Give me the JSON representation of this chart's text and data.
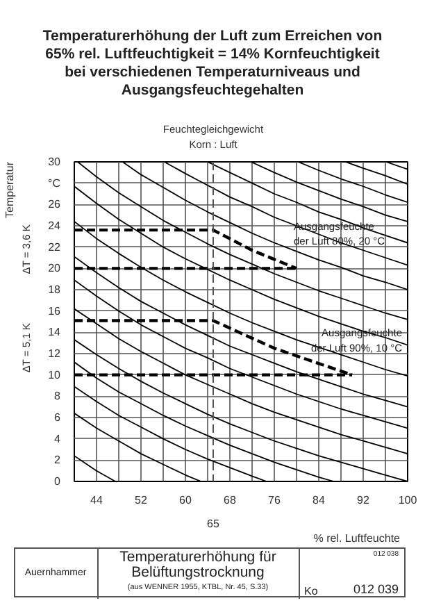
{
  "chart_data": {
    "type": "line",
    "title": "Temperaturerhöhung der Luft zum Erreichen von 65% rel. Luftfeuchtigkeit = 14% Kornfeuchtigkeit bei verschiedenen Temperaturniveaus und Ausgangsfeuchtegehalten",
    "xlabel": "% rel. Luftfeuchte",
    "ylabel": "Temperatur",
    "xlim": [
      40,
      100
    ],
    "ylim": [
      0,
      30
    ],
    "xticks": [
      {
        "value": 40,
        "label": null
      },
      44,
      {
        "value": 48,
        "label": null
      },
      52,
      {
        "value": 56,
        "label": null
      },
      60,
      {
        "value": 64,
        "label": null
      },
      68,
      {
        "value": 72,
        "label": null
      },
      76,
      {
        "value": 80,
        "label": null
      },
      84,
      {
        "value": 88,
        "label": null
      },
      92,
      {
        "value": 96,
        "label": null
      },
      100
    ],
    "yticks": [
      0,
      2,
      4,
      6,
      8,
      10,
      12,
      14,
      16,
      18,
      20,
      22,
      24,
      26,
      {
        "value": 28,
        "label": "°C"
      },
      30
    ],
    "grid": true,
    "marker": "none",
    "line_style": "solid",
    "ref_lines": [
      {
        "axis": "x",
        "value": 65,
        "label": "65",
        "line_style": "dashed",
        "color": "#555555"
      }
    ],
    "series": [
      {
        "color": "#000000",
        "x": [
          40,
          44,
          47.4
        ],
        "values": [
          2.4,
          1.0,
          0
        ]
      },
      {
        "color": "#000000",
        "x": [
          40,
          44,
          48,
          52,
          56,
          60,
          62.8
        ],
        "values": [
          6.4,
          5.0,
          3.8,
          2.6,
          1.6,
          0.6,
          0
        ]
      },
      {
        "color": "#000000",
        "x": [
          40,
          44,
          48,
          52,
          56,
          60,
          64,
          68,
          72,
          74.6
        ],
        "values": [
          8.9,
          7.5,
          6.2,
          5.1,
          4.0,
          3.0,
          2.1,
          1.3,
          0.5,
          0
        ]
      },
      {
        "color": "#000000",
        "x": [
          40,
          44,
          48,
          52,
          56,
          60,
          64,
          68,
          72,
          76,
          80,
          84,
          86.7
        ],
        "values": [
          11.2,
          9.7,
          8.4,
          7.3,
          6.2,
          5.2,
          4.3,
          3.4,
          2.6,
          1.8,
          1.1,
          0.4,
          0
        ]
      },
      {
        "color": "#000000",
        "x": [
          40,
          44,
          48,
          52,
          56,
          60,
          64,
          68,
          72,
          76,
          80,
          84,
          88,
          92,
          96,
          100
        ],
        "values": [
          13.3,
          11.9,
          10.6,
          9.4,
          8.3,
          7.3,
          6.3,
          5.4,
          4.6,
          3.8,
          3.1,
          2.4,
          1.8,
          1.2,
          0.6,
          0
        ]
      },
      {
        "color": "#000000",
        "x": [
          40,
          44,
          48,
          52,
          56,
          60,
          64,
          68,
          72,
          76,
          80,
          84,
          88,
          92,
          96,
          100
        ],
        "values": [
          16.2,
          14.8,
          13.4,
          12.2,
          11.1,
          10.0,
          9.1,
          8.2,
          7.3,
          6.5,
          5.8,
          5.1,
          4.4,
          3.8,
          3.2,
          2.6
        ]
      },
      {
        "color": "#000000",
        "x": [
          40,
          44,
          48,
          52,
          56,
          60,
          64,
          68,
          72,
          76,
          80,
          84,
          88,
          92,
          96,
          100
        ],
        "values": [
          18.9,
          17.4,
          16.0,
          14.7,
          13.6,
          12.5,
          11.6,
          10.6,
          9.8,
          9.0,
          8.2,
          7.5,
          6.8,
          6.2,
          5.6,
          5.0
        ]
      },
      {
        "color": "#000000",
        "x": [
          40,
          44,
          48,
          52,
          56,
          60,
          64,
          68,
          72,
          76,
          80,
          84,
          88,
          92,
          96,
          100
        ],
        "values": [
          21.1,
          19.6,
          18.2,
          16.9,
          15.8,
          14.7,
          13.7,
          12.7,
          11.9,
          11.1,
          10.3,
          9.6,
          8.9,
          8.2,
          7.6,
          7.0
        ]
      },
      {
        "color": "#000000",
        "x": [
          40,
          44,
          48,
          52,
          56,
          60,
          64,
          68,
          72,
          76,
          80,
          84,
          88,
          92,
          96,
          100
        ],
        "values": [
          24.4,
          22.8,
          21.4,
          20.1,
          18.9,
          17.8,
          16.8,
          15.8,
          14.9,
          14.1,
          13.3,
          12.6,
          11.9,
          11.2,
          10.5,
          9.9
        ]
      },
      {
        "color": "#000000",
        "x": [
          40,
          44,
          48,
          52,
          56,
          60,
          64,
          68,
          72,
          76,
          80,
          84,
          88,
          92,
          96,
          100
        ],
        "values": [
          27.7,
          26.1,
          24.6,
          23.3,
          22.0,
          20.9,
          19.9,
          18.9,
          18.0,
          17.1,
          16.3,
          15.5,
          14.8,
          14.1,
          13.5,
          12.8
        ]
      },
      {
        "color": "#000000",
        "x": [
          40.6,
          44,
          48,
          52,
          56,
          60,
          64,
          68,
          72,
          76,
          80,
          84,
          88,
          92,
          96,
          100
        ],
        "values": [
          30,
          28.6,
          27.1,
          25.8,
          24.5,
          23.4,
          22.3,
          21.3,
          20.4,
          19.5,
          18.7,
          17.9,
          17.2,
          16.5,
          15.8,
          15.2
        ]
      },
      {
        "color": "#000000",
        "x": [
          48.7,
          52,
          56,
          60,
          64,
          68,
          72,
          76,
          80,
          84,
          88,
          92,
          96,
          100
        ],
        "values": [
          30,
          28.8,
          27.6,
          26.4,
          25.3,
          24.3,
          23.3,
          22.4,
          21.6,
          20.8,
          20.1,
          19.3,
          18.7,
          18.0
        ]
      },
      {
        "color": "#000000",
        "x": [
          56.2,
          60,
          64,
          68,
          72,
          76,
          80,
          84,
          88,
          92,
          96,
          100
        ],
        "values": [
          30,
          28.9,
          27.8,
          26.7,
          25.8,
          24.8,
          24.0,
          23.2,
          22.4,
          21.7,
          21.0,
          20.3
        ]
      },
      {
        "color": "#000000",
        "x": [
          64,
          68,
          72,
          76,
          80,
          84,
          88,
          92,
          96,
          100
        ],
        "values": [
          30,
          29.0,
          28.0,
          27.0,
          26.2,
          25.3,
          24.6,
          23.8,
          23.1,
          22.4
        ]
      },
      {
        "color": "#000000",
        "x": [
          71.8,
          76,
          80,
          84,
          88,
          92,
          96,
          100
        ],
        "values": [
          30,
          29.0,
          28.1,
          27.3,
          26.5,
          25.8,
          25.0,
          24.4
        ]
      },
      {
        "color": "#000000",
        "x": [
          80.3,
          84,
          88,
          92,
          96,
          100
        ],
        "values": [
          30,
          29.2,
          28.4,
          27.7,
          26.9,
          26.2
        ]
      },
      {
        "color": "#000000",
        "x": [
          88.8,
          92,
          96,
          100
        ],
        "values": [
          30,
          29.4,
          28.7,
          27.9
        ]
      },
      {
        "color": "#000000",
        "x": [
          96.1,
          100
        ],
        "values": [
          30,
          29.3
        ]
      },
      {
        "color": "#000000",
        "line_style": "dashed",
        "x": [
          40,
          80
        ],
        "values": [
          20,
          20
        ]
      },
      {
        "color": "#000000",
        "line_style": "dashed",
        "x": [
          40,
          65,
          72,
          80
        ],
        "values": [
          23.6,
          23.6,
          21.7,
          20
        ]
      },
      {
        "color": "#000000",
        "line_style": "dashed",
        "x": [
          40,
          90
        ],
        "values": [
          10,
          10
        ]
      },
      {
        "color": "#000000",
        "line_style": "dashed",
        "x": [
          40,
          65,
          76,
          90
        ],
        "values": [
          15.1,
          15.1,
          12.5,
          10
        ]
      }
    ],
    "annotations": [
      {
        "text": "Feuchtegleichgewicht\nKorn : Luft",
        "x": 65,
        "y": 30
      },
      {
        "text": "Ausgangsfeuchte\nder Luft 80%, 20 °C",
        "x": 80,
        "y": 20
      },
      {
        "text": "Ausgangsfeuchte\nder Luft 90%, 10 °C",
        "x": 90,
        "y": 10
      },
      "ΔT = 3,6 K",
      "ΔT = 5,1 K",
      "Auernhammer",
      "Temperaturerhöhung für\nBelüftungstrocknung",
      "(aus WENNER 1955, KTBL, Nr. 45, S.33)",
      "012 038",
      "Ko",
      "012 039"
    ]
  }
}
